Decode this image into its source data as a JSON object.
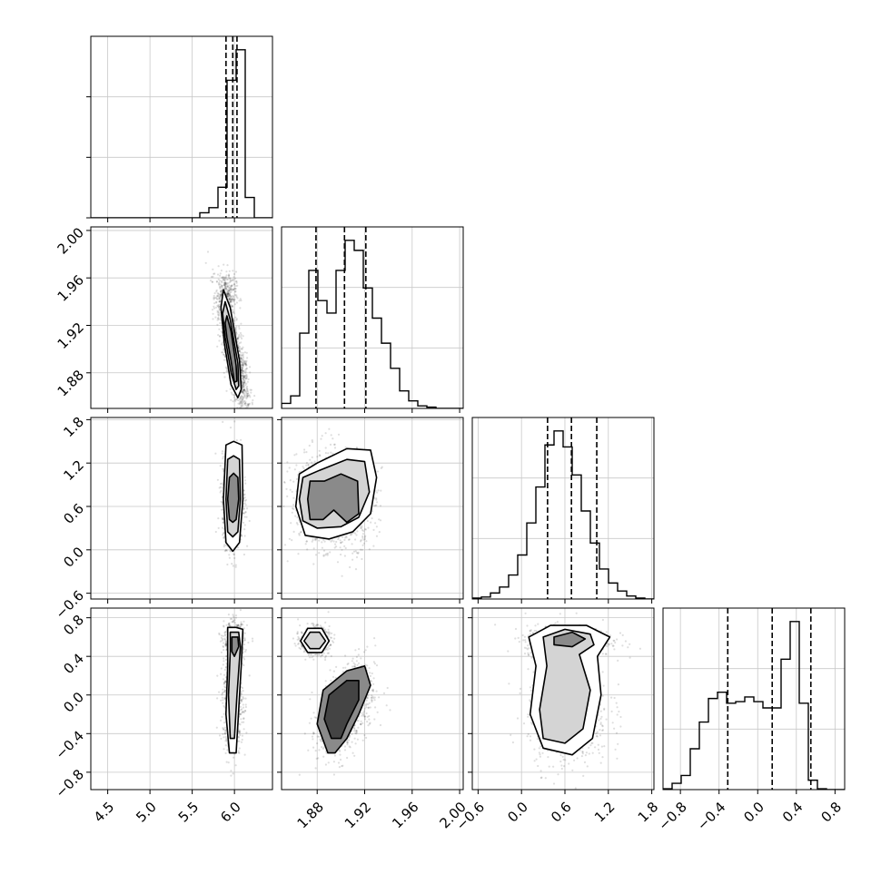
{
  "chart_data": {
    "type": "corner",
    "params": [
      {
        "range": [
          4.3,
          6.45
        ],
        "ticks": [
          4.5,
          5.0,
          5.5,
          6.0
        ],
        "tick_labels": [
          "4.5",
          "5.0",
          "5.5",
          "6.0"
        ],
        "quantiles": [
          5.9,
          5.98,
          6.03
        ]
      },
      {
        "range": [
          1.85,
          2.003
        ],
        "ticks": [
          1.88,
          1.92,
          1.96,
          2.0
        ],
        "tick_labels": [
          "1.88",
          "1.92",
          "1.96",
          "2.00"
        ],
        "quantiles": [
          1.879,
          1.903,
          1.921
        ]
      },
      {
        "range": [
          -0.68,
          1.83
        ],
        "ticks": [
          -0.6,
          0.0,
          0.6,
          1.2,
          1.8
        ],
        "tick_labels": [
          "−0.6",
          "0.0",
          "0.6",
          "1.2",
          "1.8"
        ],
        "quantiles": [
          0.36,
          0.69,
          1.04
        ]
      },
      {
        "range": [
          -0.98,
          0.9
        ],
        "ticks": [
          -0.8,
          -0.4,
          0.0,
          0.4,
          0.8
        ],
        "tick_labels": [
          "−0.8",
          "−0.4",
          "0.0",
          "0.4",
          "0.8"
        ],
        "quantiles": [
          -0.31,
          0.15,
          0.55
        ]
      }
    ],
    "histograms": [
      {
        "counts": [
          0,
          0,
          0,
          0,
          0,
          0,
          0,
          0,
          0,
          0,
          0,
          0,
          1,
          2,
          6,
          27,
          33,
          4,
          0,
          0
        ]
      },
      {
        "counts": [
          0.02,
          0.05,
          0.3,
          0.55,
          0.43,
          0.38,
          0.55,
          0.67,
          0.63,
          0.48,
          0.36,
          0.26,
          0.16,
          0.07,
          0.03,
          0.01,
          0.005,
          0,
          0,
          0
        ]
      },
      {
        "counts": [
          0.005,
          0.01,
          0.03,
          0.06,
          0.12,
          0.22,
          0.38,
          0.56,
          0.77,
          0.84,
          0.76,
          0.62,
          0.44,
          0.28,
          0.15,
          0.08,
          0.04,
          0.015,
          0.005,
          0
        ]
      },
      {
        "counts": [
          0.005,
          0.04,
          0.09,
          0.26,
          0.43,
          0.58,
          0.62,
          0.55,
          0.56,
          0.59,
          0.56,
          0.52,
          0.52,
          0.83,
          1.07,
          0.55,
          0.06,
          0.005,
          0,
          0
        ]
      }
    ],
    "scatter_blobs": [
      {
        "x": 1,
        "y": 0,
        "blobs": [
          {
            "cx": 6.0,
            "cy": 1.895,
            "sx": 0.09,
            "sy": 0.025,
            "r": -0.8,
            "w": 1
          },
          {
            "cx": 5.9,
            "cy": 1.945,
            "sx": 0.06,
            "sy": 0.01,
            "r": 0,
            "w": 0.25
          }
        ]
      },
      {
        "x": 2,
        "y": 0,
        "blobs": [
          {
            "cx": 5.98,
            "cy": 0.7,
            "sx": 0.06,
            "sy": 0.3,
            "r": 0,
            "w": 1
          }
        ]
      },
      {
        "x": 2,
        "y": 1,
        "blobs": [
          {
            "cx": 1.882,
            "cy": 0.7,
            "sx": 0.012,
            "sy": 0.32,
            "r": 0,
            "w": 0.5
          },
          {
            "cx": 1.905,
            "cy": 0.7,
            "sx": 0.012,
            "sy": 0.32,
            "r": 0,
            "w": 0.6
          }
        ]
      },
      {
        "x": 3,
        "y": 0,
        "blobs": [
          {
            "cx": 6.0,
            "cy": 0.55,
            "sx": 0.06,
            "sy": 0.1,
            "r": 0,
            "w": 0.45
          },
          {
            "cx": 5.98,
            "cy": -0.1,
            "sx": 0.06,
            "sy": 0.25,
            "r": 0,
            "w": 0.55
          }
        ]
      },
      {
        "x": 3,
        "y": 1,
        "blobs": [
          {
            "cx": 1.878,
            "cy": 0.56,
            "sx": 0.006,
            "sy": 0.07,
            "r": 0,
            "w": 0.45
          },
          {
            "cx": 1.905,
            "cy": -0.15,
            "sx": 0.012,
            "sy": 0.25,
            "r": 0.4,
            "w": 0.55
          }
        ]
      },
      {
        "x": 3,
        "y": 2,
        "blobs": [
          {
            "cx": 0.65,
            "cy": 0.56,
            "sx": 0.3,
            "sy": 0.08,
            "r": 0,
            "w": 0.45
          },
          {
            "cx": 0.65,
            "cy": -0.15,
            "sx": 0.28,
            "sy": 0.3,
            "r": 0,
            "w": 0.55
          }
        ]
      }
    ],
    "contours": [
      {
        "x": 1,
        "y": 0,
        "rings": [
          [
            [
              5.87,
              1.95
            ],
            [
              5.95,
              1.935
            ],
            [
              6.06,
              1.89
            ],
            [
              6.08,
              1.866
            ],
            [
              6.04,
              1.859
            ],
            [
              5.96,
              1.87
            ],
            [
              5.88,
              1.905
            ],
            [
              5.84,
              1.935
            ]
          ],
          [
            [
              5.89,
              1.94
            ],
            [
              5.95,
              1.925
            ],
            [
              6.04,
              1.888
            ],
            [
              6.05,
              1.869
            ],
            [
              6.02,
              1.866
            ],
            [
              5.96,
              1.88
            ],
            [
              5.89,
              1.91
            ],
            [
              5.86,
              1.93
            ]
          ],
          [
            [
              5.91,
              1.928
            ],
            [
              5.96,
              1.915
            ],
            [
              6.02,
              1.886
            ],
            [
              6.03,
              1.873
            ],
            [
              6.0,
              1.872
            ],
            [
              5.96,
              1.89
            ],
            [
              5.91,
              1.91
            ],
            [
              5.89,
              1.922
            ]
          ]
        ]
      },
      {
        "x": 2,
        "y": 0,
        "rings": [
          [
            [
              5.9,
              1.45
            ],
            [
              5.99,
              1.5
            ],
            [
              6.09,
              1.45
            ],
            [
              6.1,
              0.7
            ],
            [
              6.06,
              0.1
            ],
            [
              5.98,
              -0.02
            ],
            [
              5.9,
              0.1
            ],
            [
              5.87,
              0.7
            ]
          ],
          [
            [
              5.92,
              1.25
            ],
            [
              5.99,
              1.3
            ],
            [
              6.06,
              1.25
            ],
            [
              6.07,
              0.7
            ],
            [
              6.04,
              0.25
            ],
            [
              5.98,
              0.18
            ],
            [
              5.92,
              0.25
            ],
            [
              5.9,
              0.7
            ]
          ],
          [
            [
              5.94,
              1.0
            ],
            [
              5.99,
              1.06
            ],
            [
              6.04,
              1.0
            ],
            [
              6.05,
              0.7
            ],
            [
              6.02,
              0.42
            ],
            [
              5.98,
              0.38
            ],
            [
              5.94,
              0.42
            ],
            [
              5.92,
              0.7
            ]
          ]
        ]
      },
      {
        "x": 2,
        "y": 1,
        "rings": [
          [
            [
              1.865,
              1.05
            ],
            [
              1.88,
              1.2
            ],
            [
              1.905,
              1.4
            ],
            [
              1.925,
              1.38
            ],
            [
              1.93,
              1.0
            ],
            [
              1.925,
              0.5
            ],
            [
              1.91,
              0.25
            ],
            [
              1.89,
              0.15
            ],
            [
              1.87,
              0.2
            ],
            [
              1.862,
              0.6
            ]
          ],
          [
            [
              1.868,
              1.0
            ],
            [
              1.882,
              1.1
            ],
            [
              1.905,
              1.25
            ],
            [
              1.92,
              1.22
            ],
            [
              1.924,
              0.8
            ],
            [
              1.915,
              0.45
            ],
            [
              1.9,
              0.32
            ],
            [
              1.88,
              0.3
            ],
            [
              1.868,
              0.4
            ],
            [
              1.865,
              0.7
            ]
          ],
          [
            [
              1.874,
              0.95
            ],
            [
              1.886,
              0.95
            ],
            [
              1.9,
              1.05
            ],
            [
              1.914,
              0.95
            ],
            [
              1.915,
              0.5
            ],
            [
              1.905,
              0.38
            ],
            [
              1.894,
              0.55
            ],
            [
              1.885,
              0.42
            ],
            [
              1.874,
              0.42
            ],
            [
              1.872,
              0.7
            ]
          ]
        ]
      },
      {
        "x": 3,
        "y": 0,
        "rings": [
          [
            [
              5.92,
              0.7
            ],
            [
              6.02,
              0.7
            ],
            [
              6.1,
              0.68
            ],
            [
              6.08,
              0.3
            ],
            [
              6.04,
              -0.3
            ],
            [
              6.02,
              -0.6
            ],
            [
              5.94,
              -0.6
            ],
            [
              5.9,
              -0.2
            ],
            [
              5.92,
              0.3
            ]
          ],
          [
            [
              5.95,
              0.65
            ],
            [
              6.05,
              0.65
            ],
            [
              6.07,
              0.5
            ],
            [
              6.03,
              0.0
            ],
            [
              6.0,
              -0.45
            ],
            [
              5.95,
              -0.45
            ],
            [
              5.93,
              0.0
            ],
            [
              5.95,
              0.45
            ]
          ],
          [
            [
              5.97,
              0.6
            ],
            [
              6.04,
              0.6
            ],
            [
              6.05,
              0.5
            ],
            [
              6.0,
              0.4
            ],
            [
              5.97,
              0.45
            ]
          ]
        ]
      },
      {
        "x": 3,
        "y": 1,
        "rings": [
          [
            [
              1.872,
              0.69
            ],
            [
              1.884,
              0.69
            ],
            [
              1.89,
              0.56
            ],
            [
              1.884,
              0.44
            ],
            [
              1.872,
              0.44
            ],
            [
              1.866,
              0.56
            ]
          ],
          [
            [
              1.874,
              0.65
            ],
            [
              1.882,
              0.65
            ],
            [
              1.887,
              0.56
            ],
            [
              1.882,
              0.48
            ],
            [
              1.874,
              0.48
            ],
            [
              1.869,
              0.56
            ]
          ],
          [
            [
              1.889,
              -0.6
            ],
            [
              1.88,
              -0.3
            ],
            [
              1.885,
              0.05
            ],
            [
              1.905,
              0.25
            ],
            [
              1.92,
              0.3
            ],
            [
              1.925,
              0.1
            ],
            [
              1.915,
              -0.2
            ],
            [
              1.905,
              -0.45
            ],
            [
              1.895,
              -0.6
            ]
          ],
          [
            [
              1.892,
              -0.45
            ],
            [
              1.886,
              -0.25
            ],
            [
              1.89,
              0.0
            ],
            [
              1.905,
              0.15
            ],
            [
              1.915,
              0.15
            ],
            [
              1.915,
              -0.05
            ],
            [
              1.905,
              -0.3
            ],
            [
              1.9,
              -0.45
            ]
          ]
        ]
      },
      {
        "x": 3,
        "y": 2,
        "rings": [
          [
            [
              0.1,
              0.6
            ],
            [
              0.4,
              0.72
            ],
            [
              0.9,
              0.72
            ],
            [
              1.22,
              0.6
            ],
            [
              1.05,
              0.4
            ],
            [
              1.1,
              0.0
            ],
            [
              0.98,
              -0.45
            ],
            [
              0.7,
              -0.62
            ],
            [
              0.3,
              -0.55
            ],
            [
              0.12,
              -0.2
            ],
            [
              0.2,
              0.3
            ]
          ],
          [
            [
              0.3,
              0.6
            ],
            [
              0.6,
              0.68
            ],
            [
              0.95,
              0.63
            ],
            [
              1.0,
              0.52
            ],
            [
              0.8,
              0.42
            ],
            [
              0.95,
              0.05
            ],
            [
              0.85,
              -0.35
            ],
            [
              0.6,
              -0.5
            ],
            [
              0.3,
              -0.45
            ],
            [
              0.25,
              -0.15
            ],
            [
              0.35,
              0.3
            ]
          ],
          [
            [
              0.45,
              0.6
            ],
            [
              0.7,
              0.65
            ],
            [
              0.88,
              0.58
            ],
            [
              0.7,
              0.5
            ],
            [
              0.45,
              0.52
            ]
          ]
        ]
      }
    ]
  }
}
